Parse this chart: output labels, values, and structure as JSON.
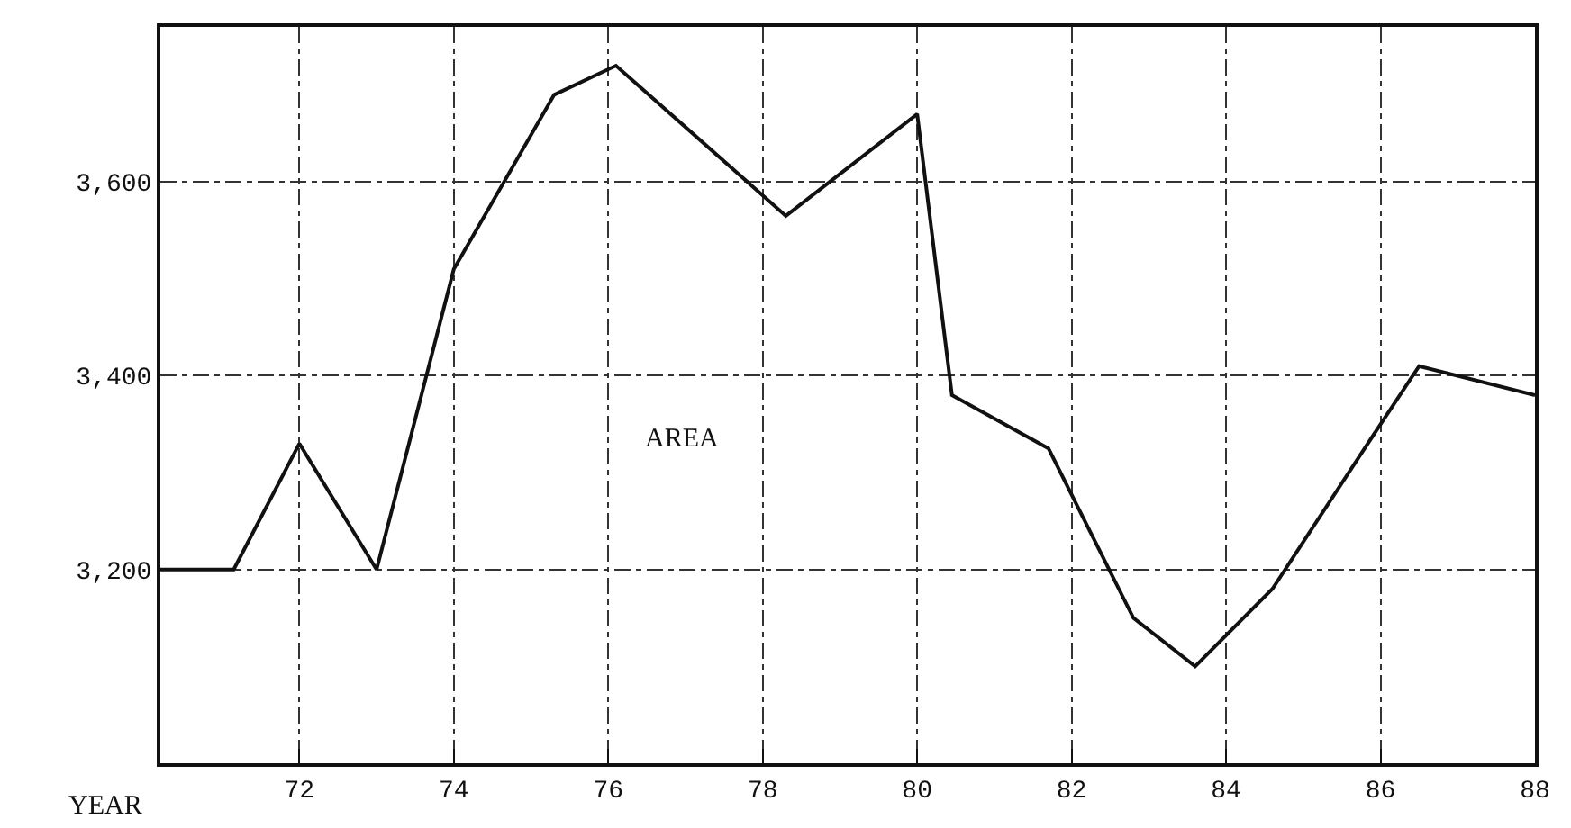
{
  "chart_data": {
    "type": "line",
    "xlabel": "YEAR",
    "x": [
      70.2,
      71.15,
      72,
      73,
      74,
      75.3,
      76.1,
      78.3,
      80,
      80.45,
      81.7,
      82.8,
      83.6,
      84.6,
      86,
      86.5,
      88
    ],
    "series": [
      {
        "color": "#111111",
        "values": [
          3200,
          3200,
          3330,
          3200,
          3510,
          3690,
          3720,
          3565,
          3670,
          3380,
          3325,
          3150,
          3100,
          3180,
          3350,
          3410,
          3380
        ]
      }
    ],
    "xlim": [
      70.2,
      88
    ],
    "xticks": [
      72,
      74,
      76,
      78,
      80,
      82,
      84,
      86,
      88
    ],
    "ylim": [
      3000,
      3760
    ],
    "yticks": [
      {
        "value": 3200,
        "label": "3,200"
      },
      {
        "value": 3400,
        "label": "3,400"
      },
      {
        "value": 3600,
        "label": "3,600"
      }
    ],
    "grid": true,
    "marker": "none",
    "line_style": "solid",
    "annotations": [
      "AREA"
    ]
  }
}
